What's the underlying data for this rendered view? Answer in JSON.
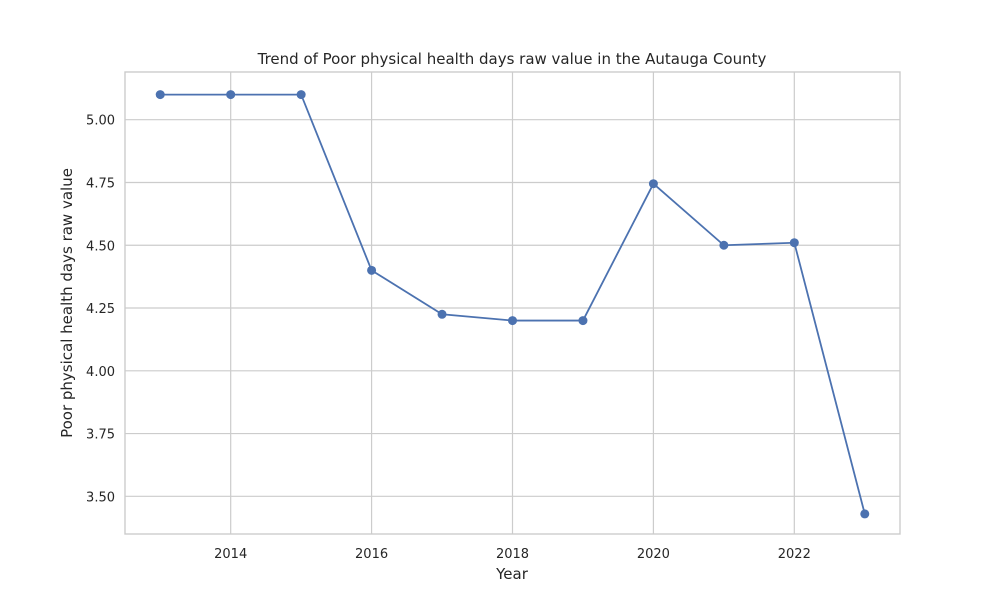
{
  "chart_data": {
    "type": "line",
    "title": "Trend of Poor physical health days raw value in the Autauga County",
    "xlabel": "Year",
    "ylabel": "Poor physical health days raw value",
    "xlim": [
      2012.5,
      2023.5
    ],
    "ylim": [
      3.35,
      5.19
    ],
    "x_ticks": [
      2014,
      2016,
      2018,
      2020,
      2022
    ],
    "x_tick_labels": [
      "2014",
      "2016",
      "2018",
      "2020",
      "2022"
    ],
    "y_ticks": [
      3.5,
      3.75,
      4.0,
      4.25,
      4.5,
      4.75,
      5.0
    ],
    "y_tick_labels": [
      "3.50",
      "3.75",
      "4.00",
      "4.25",
      "4.50",
      "4.75",
      "5.00"
    ],
    "grid": true,
    "color": "#4c72b0",
    "series": [
      {
        "name": "Poor physical health days raw value",
        "x": [
          2013,
          2014,
          2015,
          2016,
          2017,
          2018,
          2019,
          2020,
          2021,
          2022,
          2023
        ],
        "values": [
          5.1,
          5.1,
          5.1,
          4.4,
          4.225,
          4.2,
          4.2,
          4.745,
          4.5,
          4.51,
          3.43
        ]
      }
    ]
  }
}
